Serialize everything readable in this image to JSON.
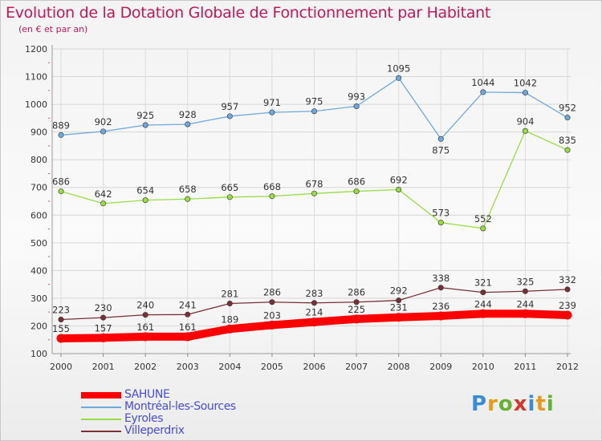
{
  "title": "Evolution de la Dotation Globale de Fonctionnement par Habitant",
  "subtitle": "(en € et par an)",
  "logo": "Proxiti",
  "chart_data": {
    "type": "line",
    "x": [
      "2000",
      "2001",
      "2002",
      "2003",
      "2004",
      "2005",
      "2006",
      "2007",
      "2008",
      "2009",
      "2010",
      "2011",
      "2012"
    ],
    "ylim": [
      100,
      1200
    ],
    "yticks": [
      100,
      200,
      300,
      400,
      500,
      600,
      700,
      800,
      900,
      1000,
      1100,
      1200
    ],
    "grid": true,
    "legend_position": "bottom-left",
    "series": [
      {
        "name": "SAHUNE",
        "color": "#ff0000",
        "values": [
          155,
          157,
          161,
          161,
          189,
          203,
          214,
          225,
          231,
          236,
          244,
          244,
          239
        ]
      },
      {
        "name": "Montréal-les-Sources",
        "color": "#6fa8dc",
        "values": [
          889,
          902,
          925,
          928,
          957,
          971,
          975,
          993,
          1095,
          875,
          1044,
          1042,
          952
        ]
      },
      {
        "name": "Eyroles",
        "color": "#99dd44",
        "values": [
          686,
          642,
          654,
          658,
          665,
          668,
          678,
          686,
          692,
          573,
          552,
          904,
          835
        ]
      },
      {
        "name": "Villeperdrix",
        "color": "#7a2f38",
        "values": [
          223,
          230,
          240,
          241,
          281,
          286,
          283,
          286,
          292,
          338,
          321,
          325,
          332
        ]
      }
    ]
  }
}
